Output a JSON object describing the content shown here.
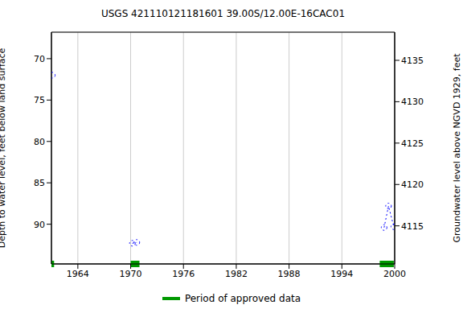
{
  "chart_data": {
    "type": "line",
    "title": "USGS 421110121181601 39.00S/12.00E-16CAC01",
    "ylabel": "Depth to water level, feet below land surface",
    "y2label": "Groundwater level above NGVD 1929, feet",
    "x": [
      1961.1,
      1966,
      1970.2,
      1970.7,
      1985,
      1998.8,
      1999.3,
      1999.9
    ],
    "values": [
      72.0,
      null,
      92.3,
      92.2,
      null,
      90.4,
      87.8,
      90.3
    ],
    "color": "#0000ff",
    "marker": "circle",
    "line_style": "dotted",
    "xlim": [
      1961,
      2000
    ],
    "xticks": [
      1964,
      1970,
      1976,
      1982,
      1988,
      1994,
      2000
    ],
    "ylim": [
      66.8,
      94.8
    ],
    "yticks": [
      70,
      75,
      80,
      85,
      90
    ],
    "y2lim": [
      4110.4,
      4138.4
    ],
    "y2ticks": [
      4115,
      4120,
      4125,
      4130,
      4135
    ],
    "grid": true,
    "approved_periods": {
      "name": "Period of approved data",
      "color": "#009900",
      "ranges": [
        [
          1961,
          1961.3
        ],
        [
          1970.0,
          1971.0
        ],
        [
          1998.3,
          1999.9
        ]
      ]
    }
  }
}
